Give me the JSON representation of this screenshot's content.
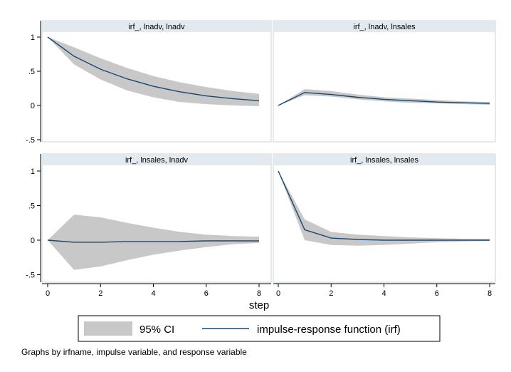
{
  "chart_data": {
    "type": "line",
    "x_axis": {
      "title": "step",
      "ticks": [
        0,
        2,
        4,
        6,
        8
      ],
      "range": [
        0,
        8
      ]
    },
    "y_axis": {
      "ticks": [
        1,
        0.5,
        0,
        -0.5
      ],
      "tick_labels": [
        "1",
        ".5",
        "0",
        "-.5"
      ],
      "range": [
        -0.55,
        1.05
      ]
    },
    "grid": false,
    "legend": {
      "placement": "bottom",
      "entries": [
        {
          "label": "95% CI",
          "kind": "band"
        },
        {
          "label": "impulse-response function (irf)",
          "kind": "line"
        }
      ]
    },
    "note": "Graphs by irfname, impulse variable, and response variable",
    "colors": {
      "band": "#c8c8c8",
      "line": "#1a476f",
      "strip": "#e2eaf0",
      "panel_border": "#c9d3db"
    },
    "panels": [
      {
        "title": "irf_, lnadv, lnadv",
        "x": [
          0,
          1,
          2,
          3,
          4,
          5,
          6,
          7,
          8
        ],
        "irf": [
          1.0,
          0.72,
          0.53,
          0.39,
          0.28,
          0.2,
          0.14,
          0.1,
          0.07
        ],
        "ci_lower": [
          1.0,
          0.6,
          0.38,
          0.22,
          0.12,
          0.05,
          0.02,
          0.0,
          -0.01
        ],
        "ci_upper": [
          1.0,
          0.85,
          0.69,
          0.55,
          0.43,
          0.34,
          0.27,
          0.21,
          0.17
        ]
      },
      {
        "title": "irf_, lnadv, lnsales",
        "x": [
          0,
          1,
          2,
          3,
          4,
          5,
          6,
          7,
          8
        ],
        "irf": [
          0.0,
          0.19,
          0.16,
          0.12,
          0.09,
          0.07,
          0.05,
          0.04,
          0.03
        ],
        "ci_lower": [
          0.0,
          0.15,
          0.13,
          0.09,
          0.06,
          0.04,
          0.03,
          0.02,
          0.01
        ],
        "ci_upper": [
          0.0,
          0.24,
          0.21,
          0.16,
          0.12,
          0.1,
          0.08,
          0.06,
          0.05
        ]
      },
      {
        "title": "irf_, lnsales, lnadv",
        "x": [
          0,
          1,
          2,
          3,
          4,
          5,
          6,
          7,
          8
        ],
        "irf": [
          0.0,
          -0.03,
          -0.03,
          -0.02,
          -0.02,
          -0.02,
          -0.01,
          -0.01,
          -0.01
        ],
        "ci_lower": [
          0.0,
          -0.43,
          -0.38,
          -0.29,
          -0.21,
          -0.15,
          -0.1,
          -0.06,
          -0.04
        ],
        "ci_upper": [
          0.0,
          0.37,
          0.33,
          0.25,
          0.18,
          0.12,
          0.08,
          0.06,
          0.05
        ]
      },
      {
        "title": "irf_, lnsales, lnsales",
        "x": [
          0,
          1,
          2,
          3,
          4,
          5,
          6,
          7,
          8
        ],
        "irf": [
          1.0,
          0.15,
          0.03,
          0.01,
          0.0,
          0.0,
          0.0,
          0.0,
          0.0
        ],
        "ci_lower": [
          1.0,
          0.0,
          -0.07,
          -0.08,
          -0.07,
          -0.05,
          -0.03,
          -0.02,
          -0.01
        ],
        "ci_upper": [
          1.0,
          0.3,
          0.12,
          0.08,
          0.06,
          0.04,
          0.03,
          0.02,
          0.02
        ]
      }
    ]
  }
}
